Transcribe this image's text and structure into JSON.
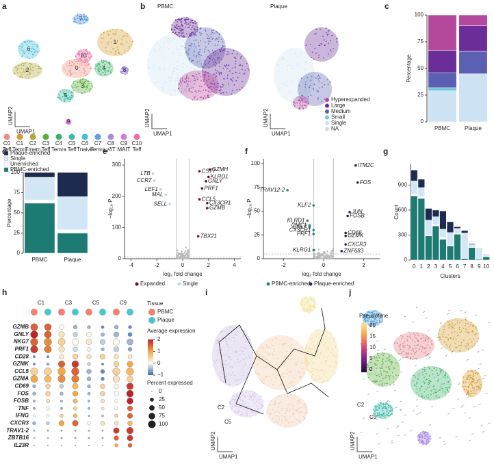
{
  "panels": [
    "a",
    "b",
    "c",
    "d",
    "e",
    "f",
    "g",
    "h",
    "i",
    "j"
  ],
  "chart_data": [
    {
      "type": "umap",
      "xlabel": "UMAP1",
      "ylabel": "UMAP2",
      "clusters": [
        "0",
        "1",
        "2",
        "3",
        "4",
        "5",
        "6",
        "7",
        "8",
        "9",
        "10"
      ],
      "legend": [
        {
          "name": "C0",
          "subtitle": "Teff",
          "color": "#ef8b7f"
        },
        {
          "name": "C1",
          "subtitle": "Temra",
          "color": "#d49b2a"
        },
        {
          "name": "C2",
          "subtitle": "Tmem",
          "color": "#b0a63a"
        },
        {
          "name": "C3",
          "subtitle": "Teff",
          "color": "#5aae3c"
        },
        {
          "name": "C4",
          "subtitle": "Temra",
          "color": "#36b366"
        },
        {
          "name": "C5",
          "subtitle": "Teff",
          "color": "#3dbaa8"
        },
        {
          "name": "C6",
          "subtitle": "Tnaive",
          "color": "#45bfd8"
        },
        {
          "name": "C7",
          "subtitle": "Temra",
          "color": "#5e9fe0"
        },
        {
          "name": "C8",
          "subtitle": "γδT",
          "color": "#a58be2"
        },
        {
          "name": "C9",
          "subtitle": "MAIT",
          "color": "#d37ad8"
        },
        {
          "name": "C10",
          "subtitle": "Teff",
          "color": "#e96fa6"
        }
      ]
    },
    {
      "type": "umap-split",
      "xlabel": "UMAP1",
      "ylabel": "UMAP2",
      "titles": [
        "PBMC",
        "Plaque"
      ],
      "legend": [
        {
          "name": "Hyperexpanded",
          "color": "#b4489d"
        },
        {
          "name": "Large",
          "color": "#6b2d98"
        },
        {
          "name": "Medium",
          "color": "#5b60b2"
        },
        {
          "name": "Small",
          "color": "#71c7d8"
        },
        {
          "name": "Single",
          "color": "#cde2f3"
        },
        {
          "name": "NA",
          "color": "#d9d9d9"
        }
      ]
    },
    {
      "type": "stacked-bar",
      "ylabel": "Percentage",
      "categories": [
        "PBMC",
        "Plaque"
      ],
      "ylim": [
        0,
        100
      ],
      "yticks": [
        0,
        25,
        50,
        75,
        100
      ],
      "series": [
        {
          "name": "NA",
          "color": "#d9d9d9",
          "values": [
            0,
            0
          ]
        },
        {
          "name": "Single",
          "color": "#cde2f3",
          "values": [
            29,
            45
          ]
        },
        {
          "name": "Small",
          "color": "#71c7d8",
          "values": [
            3,
            0
          ]
        },
        {
          "name": "Medium",
          "color": "#5b60b2",
          "values": [
            14,
            21
          ]
        },
        {
          "name": "Large",
          "color": "#6b2d98",
          "values": [
            21,
            24
          ]
        },
        {
          "name": "Hyperexpanded",
          "color": "#b4489d",
          "values": [
            33,
            10
          ]
        }
      ]
    },
    {
      "type": "stacked-bar",
      "ylabel": "Percentage",
      "categories": [
        "PBMC",
        "Plaque"
      ],
      "ylim": [
        0,
        100
      ],
      "yticks": [
        0,
        25,
        50,
        75,
        100
      ],
      "legend": true,
      "series": [
        {
          "name": "PBMC-enriched",
          "color": "#1e7b74",
          "values": [
            62,
            25
          ]
        },
        {
          "name": "Unenriched",
          "color": "#ffffff",
          "values": [
            4,
            4
          ]
        },
        {
          "name": "Single",
          "color": "#d3e6f5",
          "values": [
            28,
            41
          ]
        },
        {
          "name": "Plaque-enriched",
          "color": "#1d2b4f",
          "values": [
            6,
            30
          ]
        }
      ]
    },
    {
      "type": "volcano",
      "xlabel": "log₂ fold change",
      "ylabel": "−log₁₀ P",
      "xlim": [
        -4.5,
        4.5
      ],
      "xticks": [
        -4,
        -2,
        0,
        2,
        4
      ],
      "ylim": [
        0,
        320
      ],
      "yticks": [
        0,
        100,
        200,
        300
      ],
      "vlines": [
        -0.5,
        0.5
      ],
      "hline": 5,
      "series": [
        {
          "name": "Expanded",
          "color": "#6b0f26",
          "genes": [
            "CST7",
            "GZMH",
            "KLRD1",
            "GNLY",
            "PRF1",
            "CCL5",
            "CX3CR1",
            "GZMB",
            "TBX21"
          ],
          "x": [
            1.3,
            2.1,
            2.0,
            1.8,
            1.5,
            1.3,
            1.9,
            1.9,
            1.2
          ],
          "y": [
            280,
            285,
            262,
            248,
            225,
            190,
            178,
            162,
            72
          ]
        },
        {
          "name": "Single",
          "color": "#b9d5eb",
          "genes": [
            "LTB",
            "CCR7",
            "LEF1",
            "MAL",
            "SELL"
          ],
          "x": [
            -2.3,
            -2.2,
            -1.7,
            -1.3,
            -1.0
          ],
          "y": [
            272,
            250,
            222,
            205,
            175
          ]
        }
      ]
    },
    {
      "type": "volcano",
      "xlabel": "log₂ fold change",
      "ylabel": "−log₁₀ P",
      "xlim": [
        -3,
        2.8
      ],
      "xticks": [
        -2,
        0,
        2
      ],
      "ylim": [
        0,
        105
      ],
      "yticks": [
        0,
        25,
        50,
        75,
        100
      ],
      "vlines": [
        -0.5,
        0.5
      ],
      "hline": 5,
      "series": [
        {
          "name": "PBMC-enriched",
          "color": "#1e8a7e",
          "genes": [
            "TRAV12-2",
            "KLF2",
            "KLRD1",
            "CMC1",
            "GNLY",
            "CX3CR1",
            "PRF1",
            "KLRG1"
          ],
          "x": [
            -1.8,
            -0.5,
            -0.8,
            -0.7,
            -0.7,
            -0.5,
            -0.5,
            -0.5
          ],
          "y": [
            72,
            56,
            40,
            35,
            33,
            30,
            26,
            9
          ]
        },
        {
          "name": "Plaque-enriched",
          "color": "#1d2b4f",
          "genes": [
            "ITM2C",
            "FOS",
            "JUN",
            "FOSB",
            "CD69",
            "GZMK",
            "CXCR3",
            "ZNF683"
          ],
          "x": [
            1.6,
            1.7,
            1.3,
            1.2,
            1.1,
            1.1,
            1.1,
            0.9
          ],
          "y": [
            98,
            80,
            49,
            45,
            27,
            24,
            15,
            8
          ]
        }
      ]
    },
    {
      "type": "stacked-bar",
      "ylabel": "Count",
      "xlabel": "Clusters",
      "categories": [
        "0",
        "1",
        "2",
        "3",
        "4",
        "5",
        "6",
        "7",
        "8",
        "9",
        "10"
      ],
      "ylim": [
        0,
        1150
      ],
      "yticks": [
        0,
        300,
        600,
        900
      ],
      "series": [
        {
          "name": "PBMC-enriched",
          "color": "#1e7b74",
          "values": [
            770,
            740,
            290,
            410,
            250,
            170,
            310,
            20,
            150,
            10,
            40
          ]
        },
        {
          "name": "Unenriched",
          "color": "#ffffff",
          "values": [
            20,
            20,
            10,
            20,
            20,
            10,
            10,
            5,
            5,
            5,
            5
          ]
        },
        {
          "name": "Single",
          "color": "#d3e6f5",
          "values": [
            160,
            110,
            180,
            90,
            100,
            150,
            60,
            300,
            30,
            130,
            20
          ]
        },
        {
          "name": "Plaque-enriched",
          "color": "#1d2b4f",
          "values": [
            130,
            100,
            140,
            80,
            220,
            130,
            20,
            30,
            10,
            5,
            5
          ]
        }
      ]
    },
    {
      "type": "dotplot",
      "groups": [
        "C1",
        "C3",
        "C5",
        "C9"
      ],
      "tissues": [
        {
          "name": "PBMC",
          "color": "#f08070"
        },
        {
          "name": "Plaque",
          "color": "#4cc4d2"
        }
      ],
      "tissue_title": "Tissue",
      "genes": [
        "GZMB",
        "GNLY",
        "NKG7",
        "PRF1",
        "CD28",
        "GZMK",
        "CCL5",
        "GZMA",
        "CD69",
        "FOS",
        "FOSB",
        "TNF",
        "IFNG",
        "CXCR3",
        "TRAV1-2",
        "ZBTB16",
        "IL23R"
      ],
      "expression": [
        [
          1.5,
          1.5,
          0,
          -0.5,
          -0.5,
          -0.8,
          -0.5,
          -0.8
        ],
        [
          2,
          1.5,
          0.3,
          -0.3,
          0,
          -0.5,
          -0.5,
          -0.8
        ],
        [
          1.5,
          1.2,
          0.5,
          0,
          0.2,
          -0.3,
          0,
          -0.5
        ],
        [
          1.8,
          1.3,
          0.3,
          -0.2,
          0,
          -0.5,
          -0.3,
          -0.6
        ],
        [
          -0.8,
          -0.8,
          0.2,
          0.5,
          0.3,
          0.5,
          0.3,
          0.2
        ],
        [
          -0.8,
          -0.5,
          1.5,
          1.8,
          -0.3,
          -0.8,
          0.5,
          1
        ],
        [
          0.5,
          0.5,
          1,
          1.5,
          -0.5,
          -0.8,
          0.5,
          0.8
        ],
        [
          1,
          0.8,
          1.2,
          1.3,
          -0.5,
          -0.8,
          0.3,
          0.5
        ],
        [
          -0.5,
          0.5,
          -0.3,
          0.8,
          -0.5,
          0.5,
          0,
          1.8
        ],
        [
          -0.5,
          0.5,
          -0.5,
          1,
          -0.5,
          0.5,
          0,
          2
        ],
        [
          -0.5,
          0.3,
          -0.5,
          0.8,
          -0.5,
          0.3,
          0,
          2
        ],
        [
          -0.5,
          0,
          -0.5,
          0.5,
          -0.5,
          0.2,
          0,
          1.5
        ],
        [
          0,
          0,
          0.5,
          0.8,
          -0.5,
          -0.3,
          0.5,
          1.5
        ],
        [
          -0.5,
          -0.3,
          1,
          1.5,
          0,
          0.3,
          0.3,
          0.8
        ],
        [
          -0.5,
          -0.5,
          -0.5,
          -0.5,
          -0.5,
          -0.5,
          1.8,
          1.8
        ],
        [
          -0.3,
          -0.3,
          -0.5,
          -0.5,
          -0.5,
          -0.5,
          1.5,
          1.8
        ],
        [
          -0.5,
          -0.5,
          -0.5,
          -0.5,
          -0.5,
          -0.5,
          1,
          1.5
        ]
      ],
      "percent": [
        [
          90,
          85,
          40,
          30,
          20,
          15,
          30,
          20
        ],
        [
          95,
          90,
          60,
          40,
          40,
          25,
          50,
          30
        ],
        [
          100,
          100,
          90,
          80,
          60,
          50,
          80,
          70
        ],
        [
          95,
          90,
          60,
          40,
          30,
          20,
          50,
          30
        ],
        [
          10,
          10,
          40,
          50,
          40,
          50,
          40,
          30
        ],
        [
          10,
          15,
          80,
          85,
          20,
          10,
          50,
          60
        ],
        [
          95,
          95,
          100,
          100,
          40,
          30,
          95,
          95
        ],
        [
          90,
          85,
          95,
          95,
          30,
          20,
          80,
          70
        ],
        [
          20,
          40,
          30,
          60,
          20,
          40,
          40,
          80
        ],
        [
          20,
          40,
          20,
          50,
          15,
          40,
          40,
          85
        ],
        [
          10,
          25,
          10,
          35,
          10,
          25,
          20,
          70
        ],
        [
          10,
          20,
          10,
          25,
          10,
          15,
          20,
          50
        ],
        [
          10,
          15,
          20,
          30,
          5,
          10,
          20,
          50
        ],
        [
          20,
          20,
          50,
          60,
          20,
          30,
          30,
          40
        ],
        [
          5,
          5,
          5,
          5,
          5,
          5,
          60,
          80
        ],
        [
          5,
          5,
          5,
          5,
          5,
          5,
          40,
          60
        ],
        [
          2,
          2,
          2,
          2,
          2,
          2,
          20,
          30
        ]
      ],
      "expression_title": "Average expression",
      "expression_ticks": [
        2,
        1,
        0,
        {
          "value": -1,
          "label": "−1"
        }
      ],
      "percent_title": "Percent expressed",
      "percent_ticks": [
        0,
        25,
        50,
        75,
        100
      ]
    },
    {
      "type": "trajectory",
      "xlabel": "UMAP1",
      "ylabel": "UMAP2",
      "labels": [
        "C2",
        "C5"
      ]
    },
    {
      "type": "velocity",
      "xlabel": "UMAP1",
      "ylabel": "UMAP2",
      "labels": [
        "C2",
        "C5"
      ],
      "colorbar_title": "Pseudotime",
      "colorbar_ticks": [
        20,
        15,
        10,
        5,
        0
      ]
    }
  ]
}
